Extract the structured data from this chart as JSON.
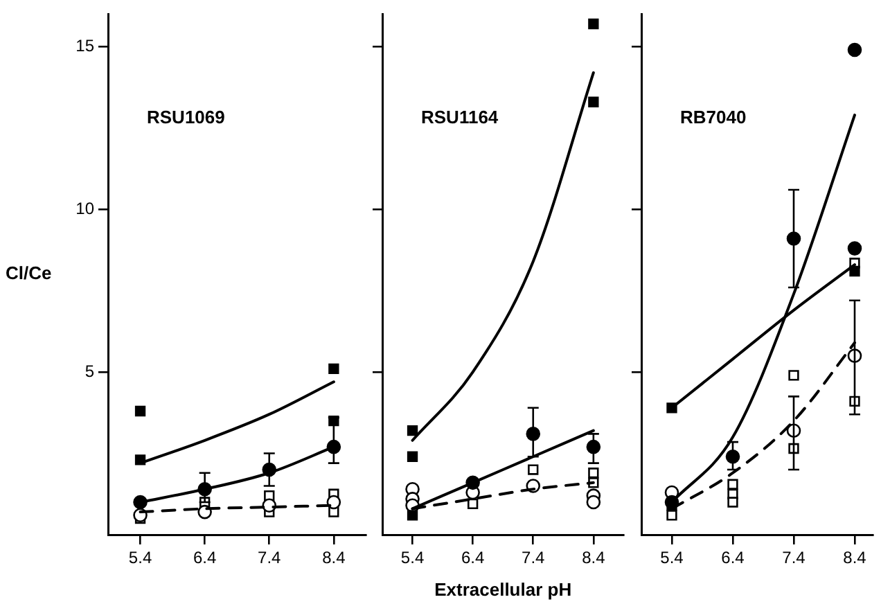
{
  "chart_data": [
    {
      "type": "scatter",
      "title": "RSU1069",
      "ylabel": "Cl/Ce",
      "xlim": [
        4.9,
        8.9
      ],
      "xticks": [
        5.4,
        6.4,
        7.4,
        8.4
      ],
      "ylim": [
        0,
        16
      ],
      "yticks": [
        5,
        10,
        15
      ],
      "grid": false,
      "series": [
        {
          "color": "#000000",
          "marker": "square",
          "x": [
            5.4,
            5.4,
            8.4,
            8.4
          ],
          "values": [
            3.8,
            2.3,
            5.1,
            3.5
          ]
        },
        {
          "color": "#000000",
          "marker": "circle",
          "x": [
            5.4,
            6.4,
            7.4,
            8.4
          ],
          "values": [
            1.0,
            1.4,
            2.0,
            2.7
          ],
          "errors": [
            null,
            [
              1.0,
              1.9
            ],
            [
              1.5,
              2.5
            ],
            [
              2.2,
              3.6
            ]
          ]
        },
        {
          "color": "#ffffff",
          "marker": "circle",
          "x": [
            5.4,
            6.4,
            7.4,
            8.4
          ],
          "values": [
            0.6,
            0.7,
            0.9,
            1.0
          ]
        },
        {
          "color": "#ffffff",
          "marker": "square",
          "x": [
            5.4,
            6.4,
            7.4,
            7.4,
            8.4,
            8.4
          ],
          "values": [
            0.5,
            1.0,
            1.2,
            0.7,
            1.25,
            0.7
          ]
        },
        {
          "type": "line",
          "color": "#000000",
          "marker": "none",
          "line_style": "solid",
          "x": [
            5.4,
            6.4,
            7.4,
            8.4
          ],
          "values": [
            2.2,
            2.9,
            3.7,
            4.7
          ]
        },
        {
          "type": "line",
          "color": "#000000",
          "marker": "none",
          "line_style": "solid",
          "x": [
            5.4,
            6.4,
            7.4,
            8.4
          ],
          "values": [
            1.0,
            1.4,
            1.9,
            2.7
          ]
        },
        {
          "type": "line",
          "color": "#000000",
          "marker": "none",
          "line_style": "dashed",
          "x": [
            5.4,
            6.4,
            7.4,
            8.4
          ],
          "values": [
            0.7,
            0.8,
            0.85,
            0.9
          ]
        }
      ]
    },
    {
      "type": "scatter",
      "title": "RSU1164",
      "xlabel": "Extracellular pH",
      "tick_labels": "x",
      "xlim": [
        4.9,
        8.9
      ],
      "xticks": [
        5.4,
        6.4,
        7.4,
        8.4
      ],
      "ylim": [
        0,
        16
      ],
      "yticks": [
        5,
        10,
        15
      ],
      "grid": false,
      "series": [
        {
          "color": "#000000",
          "marker": "square",
          "x": [
            5.4,
            5.4,
            5.4,
            8.4,
            8.4
          ],
          "values": [
            3.2,
            2.4,
            0.6,
            15.7,
            13.3
          ]
        },
        {
          "color": "#000000",
          "marker": "circle",
          "x": [
            6.4,
            7.4,
            8.4
          ],
          "values": [
            1.6,
            3.1,
            2.7
          ],
          "errors": [
            null,
            [
              2.4,
              3.9
            ],
            [
              2.2,
              3.1
            ]
          ]
        },
        {
          "color": "#ffffff",
          "marker": "circle",
          "x": [
            5.4,
            5.4,
            5.4,
            6.4,
            7.4,
            8.4,
            8.4
          ],
          "values": [
            1.4,
            1.1,
            0.9,
            1.3,
            1.5,
            1.2,
            1.0
          ]
        },
        {
          "color": "#ffffff",
          "marker": "square",
          "x": [
            6.4,
            7.4,
            8.4,
            8.4
          ],
          "values": [
            0.95,
            2.0,
            1.9,
            1.6
          ]
        },
        {
          "type": "line",
          "color": "#000000",
          "marker": "none",
          "line_style": "solid",
          "x": [
            5.4,
            6.4,
            7.4,
            8.4
          ],
          "values": [
            2.9,
            5.0,
            8.4,
            14.2
          ]
        },
        {
          "type": "line",
          "color": "#000000",
          "marker": "none",
          "line_style": "solid",
          "x": [
            5.4,
            6.4,
            7.4,
            8.4
          ],
          "values": [
            0.8,
            1.6,
            2.4,
            3.2
          ]
        },
        {
          "type": "line",
          "color": "#000000",
          "marker": "none",
          "line_style": "dashed",
          "x": [
            5.4,
            6.4,
            7.4,
            8.4
          ],
          "values": [
            0.8,
            1.1,
            1.4,
            1.6
          ]
        }
      ]
    },
    {
      "type": "scatter",
      "title": "RB7040",
      "tick_labels": "x",
      "xlim": [
        4.9,
        8.7
      ],
      "xticks": [
        5.4,
        6.4,
        7.4,
        8.4
      ],
      "ylim": [
        0,
        16
      ],
      "yticks": [
        5,
        10,
        15
      ],
      "grid": false,
      "series": [
        {
          "color": "#000000",
          "marker": "square",
          "x": [
            5.4,
            5.4,
            8.4
          ],
          "values": [
            3.9,
            0.9,
            8.1
          ]
        },
        {
          "color": "#000000",
          "marker": "circle",
          "x": [
            5.4,
            6.4,
            7.4,
            8.4,
            8.4
          ],
          "values": [
            1.0,
            2.4,
            9.1,
            14.9,
            8.8
          ],
          "errors": [
            null,
            [
              2.0,
              2.85
            ],
            [
              7.6,
              10.6
            ],
            null,
            null
          ]
        },
        {
          "color": "#ffffff",
          "marker": "circle",
          "x": [
            5.4,
            7.4,
            8.4
          ],
          "values": [
            1.3,
            3.2,
            5.5
          ],
          "errors": [
            null,
            [
              2.0,
              4.25
            ],
            [
              3.7,
              7.2
            ]
          ]
        },
        {
          "color": "#ffffff",
          "marker": "square",
          "x": [
            5.4,
            6.4,
            6.4,
            6.4,
            7.4,
            7.4,
            8.4,
            8.4
          ],
          "values": [
            0.6,
            1.55,
            1.25,
            1.0,
            4.9,
            2.65,
            4.1,
            8.35
          ]
        },
        {
          "type": "line",
          "color": "#000000",
          "marker": "none",
          "line_style": "solid",
          "x": [
            5.4,
            6.4,
            7.4,
            8.4
          ],
          "values": [
            3.9,
            5.4,
            6.9,
            8.3
          ]
        },
        {
          "type": "line",
          "color": "#000000",
          "marker": "none",
          "line_style": "solid",
          "x": [
            5.4,
            6.4,
            7.4,
            8.4
          ],
          "values": [
            1.0,
            3.0,
            7.4,
            12.9
          ]
        },
        {
          "type": "line",
          "color": "#000000",
          "marker": "none",
          "line_style": "dashed",
          "x": [
            5.4,
            6.4,
            7.4,
            8.4
          ],
          "values": [
            0.8,
            1.9,
            3.5,
            5.9
          ]
        }
      ]
    }
  ]
}
